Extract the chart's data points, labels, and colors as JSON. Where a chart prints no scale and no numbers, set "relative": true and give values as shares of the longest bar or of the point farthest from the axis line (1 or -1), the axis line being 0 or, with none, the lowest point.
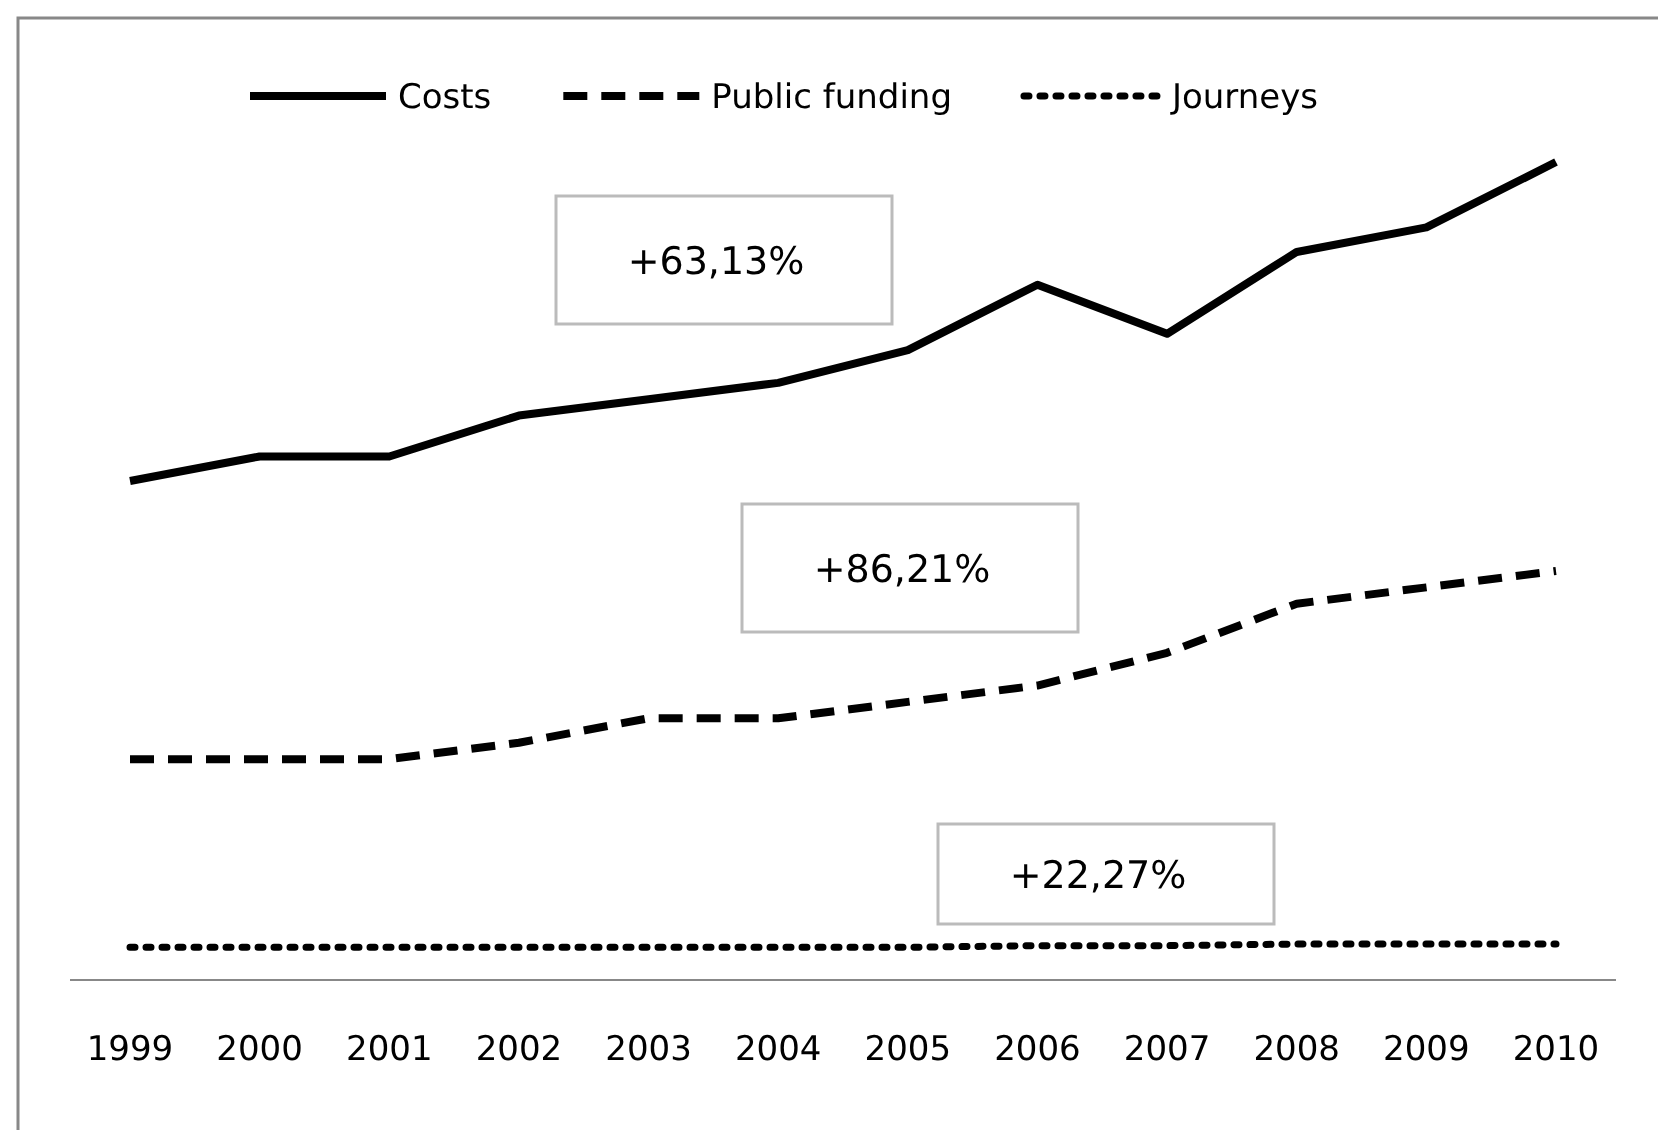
{
  "chart_data": {
    "type": "line",
    "relative": true,
    "legend": "top",
    "categories": [
      "1999",
      "2000",
      "2001",
      "2002",
      "2003",
      "2004",
      "2005",
      "2006",
      "2007",
      "2008",
      "2009",
      "2010"
    ],
    "series": [
      {
        "name": "Costs",
        "color": "#000000",
        "line_style": "solid",
        "values": [
          0.61,
          0.64,
          0.64,
          0.69,
          0.71,
          0.73,
          0.77,
          0.85,
          0.79,
          0.89,
          0.92,
          1
        ]
      },
      {
        "name": "Public funding",
        "color": "#000000",
        "line_style": "dashed",
        "values": [
          0.27,
          0.27,
          0.27,
          0.29,
          0.32,
          0.32,
          0.34,
          0.36,
          0.4,
          0.46,
          0.48,
          0.5
        ]
      },
      {
        "name": "Journeys",
        "color": "#000000",
        "line_style": "dotted",
        "values": [
          0.04,
          0.04,
          0.04,
          0.04,
          0.04,
          0.04,
          0.04,
          0.042,
          0.042,
          0.044,
          0.044,
          0.044
        ]
      }
    ],
    "annotations": [
      "+63,13%",
      "+86,21%",
      "+22,27%"
    ]
  }
}
